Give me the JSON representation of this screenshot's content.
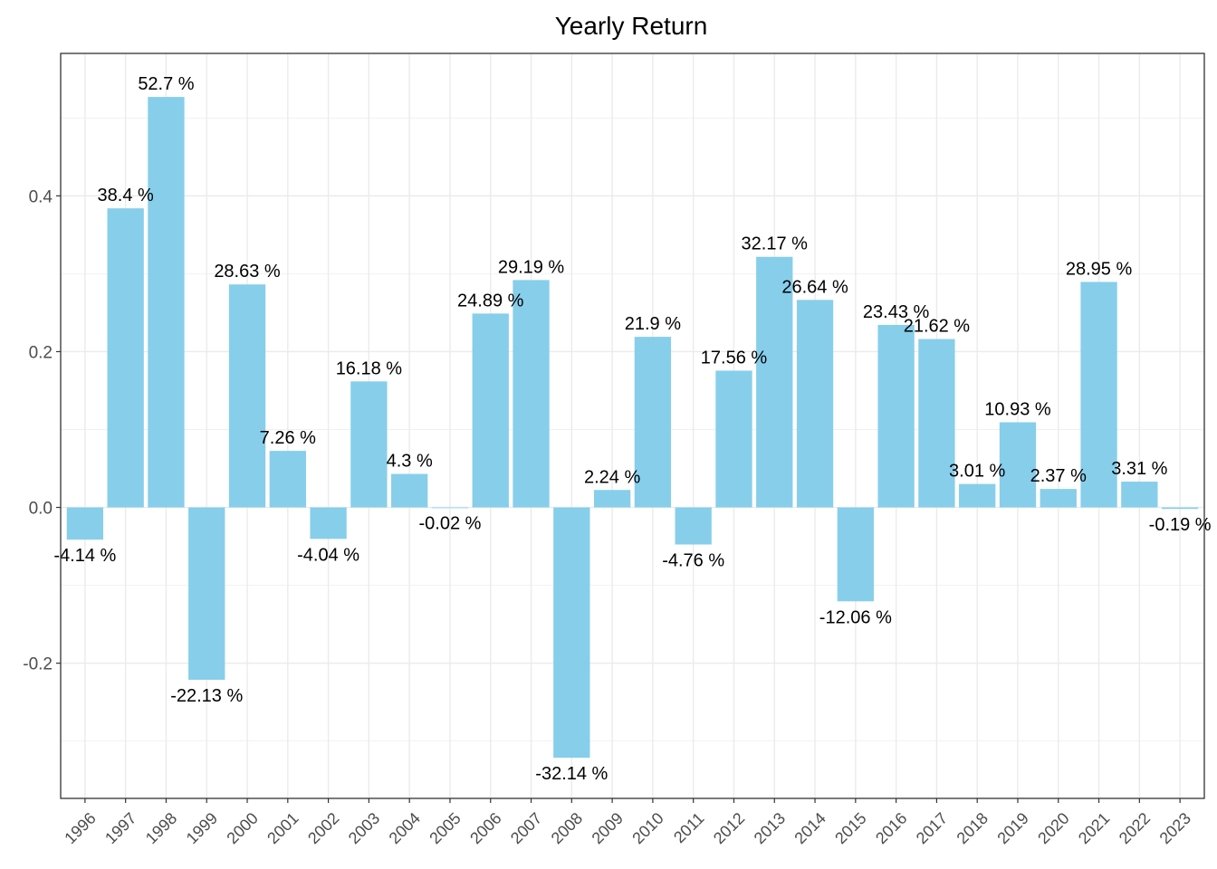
{
  "chart_data": {
    "type": "bar",
    "title": "Yearly Return",
    "xlabel": "",
    "ylabel": "",
    "categories": [
      "1996",
      "1997",
      "1998",
      "1999",
      "2000",
      "2001",
      "2002",
      "2003",
      "2004",
      "2005",
      "2006",
      "2007",
      "2008",
      "2009",
      "2010",
      "2011",
      "2012",
      "2013",
      "2014",
      "2015",
      "2016",
      "2017",
      "2018",
      "2019",
      "2020",
      "2021",
      "2022",
      "2023"
    ],
    "values": [
      -0.0414,
      0.384,
      0.527,
      -0.2213,
      0.2863,
      0.0726,
      -0.0404,
      0.1618,
      0.043,
      -0.0002,
      0.2489,
      0.2919,
      -0.3214,
      0.0224,
      0.219,
      -0.0476,
      0.1756,
      0.3217,
      0.2664,
      -0.1206,
      0.2343,
      0.2162,
      0.0301,
      0.1093,
      0.0237,
      0.2895,
      0.0331,
      -0.0019
    ],
    "data_labels": [
      "-4.14 %",
      "38.4 %",
      "52.7 %",
      "-22.13 %",
      "28.63 %",
      "7.26 %",
      "-4.04 %",
      "16.18 %",
      "4.3 %",
      "-0.02 %",
      "24.89 %",
      "29.19 %",
      "-32.14 %",
      "2.24 %",
      "21.9 %",
      "-4.76 %",
      "17.56 %",
      "32.17 %",
      "26.64 %",
      "-12.06 %",
      "23.43 %",
      "21.62 %",
      "3.01 %",
      "10.93 %",
      "2.37 %",
      "28.95 %",
      "3.31 %",
      "-0.19 %"
    ],
    "yticks": [
      -0.2,
      0.0,
      0.2,
      0.4
    ],
    "ytick_labels": [
      "-0.2",
      "0.0",
      "0.2",
      "0.4"
    ],
    "ylim": [
      -0.3736,
      0.5829
    ],
    "grid": true,
    "legend": "none",
    "bar_color": "#87CEEB",
    "grid_color": "#ebebeb",
    "panel_border_color": "#333333"
  }
}
